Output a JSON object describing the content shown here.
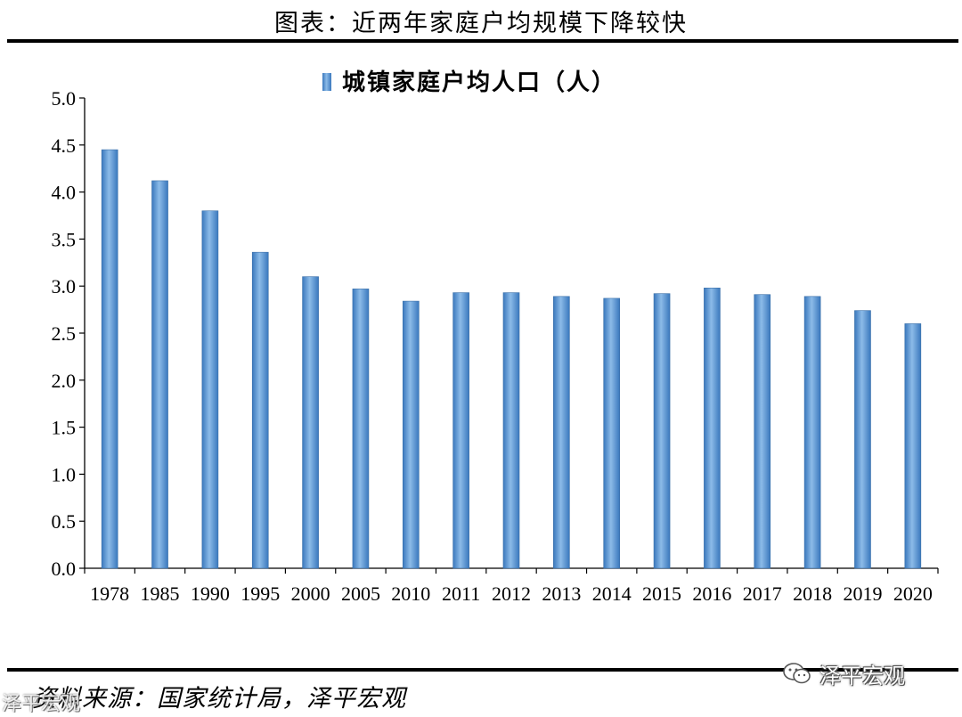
{
  "page": {
    "title": "图表：近两年家庭户均规模下降较快",
    "source": "资料来源：国家统计局，泽平宏观",
    "watermark_right": "泽平宏观",
    "watermark_left": "泽平宏观"
  },
  "chart_data": {
    "type": "bar",
    "title": "",
    "xlabel": "",
    "ylabel": "",
    "legend": {
      "placement": "top-center"
    },
    "grid": false,
    "ylim": [
      0,
      5.0
    ],
    "yticks": [
      "0.0",
      "0.5",
      "1.0",
      "1.5",
      "2.0",
      "2.5",
      "3.0",
      "3.5",
      "4.0",
      "4.5",
      "5.0"
    ],
    "categories": [
      "1978",
      "1985",
      "1990",
      "1995",
      "2000",
      "2005",
      "2010",
      "2011",
      "2012",
      "2013",
      "2014",
      "2015",
      "2016",
      "2017",
      "2018",
      "2019",
      "2020"
    ],
    "series": [
      {
        "name": "城镇家庭户均人口（人）",
        "color": "#4f8fce",
        "values": [
          4.45,
          4.12,
          3.8,
          3.36,
          3.1,
          2.97,
          2.84,
          2.93,
          2.93,
          2.89,
          2.87,
          2.92,
          2.98,
          2.91,
          2.89,
          2.74,
          2.6
        ]
      }
    ]
  }
}
